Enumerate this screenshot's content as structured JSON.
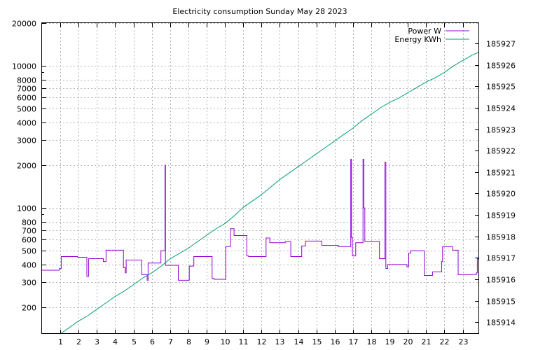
{
  "chart_data": {
    "type": "line",
    "title": "Electricity consumption Sunday May 28 2023",
    "xlabel": "",
    "ylabel": "",
    "y2label": "",
    "grid": true,
    "legend_position": "top-right",
    "x_range": [
      0,
      23.9
    ],
    "x_ticks": [
      1,
      2,
      3,
      4,
      5,
      6,
      7,
      8,
      9,
      10,
      11,
      12,
      13,
      14,
      15,
      16,
      17,
      18,
      19,
      20,
      21,
      22,
      23
    ],
    "y_scale": "log",
    "y_range": [
      130,
      20000
    ],
    "y_ticks": [
      200,
      300,
      400,
      500,
      600,
      700,
      800,
      1000,
      2000,
      3000,
      4000,
      5000,
      6000,
      7000,
      8000,
      10000,
      20000
    ],
    "y2_range": [
      185913.45,
      185927.95
    ],
    "y2_ticks": [
      185914,
      185915,
      185916,
      185917,
      185918,
      185919,
      185920,
      185921,
      185922,
      185923,
      185924,
      185925,
      185926,
      185927
    ],
    "series": [
      {
        "name": "Power W",
        "color": "#9400d3",
        "axis": "y",
        "step": true,
        "points": [
          [
            0,
            365
          ],
          [
            0.95,
            365
          ],
          [
            0.95,
            375
          ],
          [
            1.05,
            375
          ],
          [
            1.05,
            455
          ],
          [
            1.95,
            455
          ],
          [
            1.95,
            450
          ],
          [
            2.45,
            450
          ],
          [
            2.45,
            330
          ],
          [
            2.55,
            330
          ],
          [
            2.55,
            440
          ],
          [
            3.35,
            440
          ],
          [
            3.35,
            420
          ],
          [
            3.5,
            420
          ],
          [
            3.5,
            505
          ],
          [
            4.45,
            505
          ],
          [
            4.45,
            380
          ],
          [
            4.55,
            380
          ],
          [
            4.55,
            350
          ],
          [
            4.6,
            350
          ],
          [
            4.6,
            430
          ],
          [
            5.45,
            430
          ],
          [
            5.45,
            340
          ],
          [
            5.75,
            340
          ],
          [
            5.75,
            310
          ],
          [
            5.8,
            310
          ],
          [
            5.8,
            410
          ],
          [
            6.5,
            410
          ],
          [
            6.5,
            500
          ],
          [
            6.72,
            500
          ],
          [
            6.72,
            2000
          ],
          [
            6.75,
            2000
          ],
          [
            6.75,
            395
          ],
          [
            7.45,
            395
          ],
          [
            7.45,
            310
          ],
          [
            8.05,
            310
          ],
          [
            8.05,
            390
          ],
          [
            8.3,
            390
          ],
          [
            8.3,
            455
          ],
          [
            9.3,
            455
          ],
          [
            9.3,
            320
          ],
          [
            9.4,
            320
          ],
          [
            9.4,
            315
          ],
          [
            10.05,
            315
          ],
          [
            10.05,
            535
          ],
          [
            10.3,
            535
          ],
          [
            10.3,
            715
          ],
          [
            10.5,
            715
          ],
          [
            10.5,
            640
          ],
          [
            11.2,
            640
          ],
          [
            11.2,
            460
          ],
          [
            11.3,
            460
          ],
          [
            11.3,
            455
          ],
          [
            12.25,
            455
          ],
          [
            12.25,
            615
          ],
          [
            12.45,
            615
          ],
          [
            12.45,
            570
          ],
          [
            13.3,
            570
          ],
          [
            13.3,
            580
          ],
          [
            13.6,
            580
          ],
          [
            13.6,
            455
          ],
          [
            14.2,
            455
          ],
          [
            14.2,
            540
          ],
          [
            14.4,
            540
          ],
          [
            14.4,
            585
          ],
          [
            15.3,
            585
          ],
          [
            15.3,
            545
          ],
          [
            16.2,
            545
          ],
          [
            16.2,
            535
          ],
          [
            16.88,
            535
          ],
          [
            16.88,
            2200
          ],
          [
            16.92,
            2200
          ],
          [
            16.92,
            620
          ],
          [
            16.97,
            620
          ],
          [
            16.97,
            460
          ],
          [
            17.15,
            460
          ],
          [
            17.15,
            570
          ],
          [
            17.55,
            570
          ],
          [
            17.55,
            2200
          ],
          [
            17.6,
            2200
          ],
          [
            17.6,
            1000
          ],
          [
            17.65,
            1000
          ],
          [
            17.65,
            580
          ],
          [
            18.45,
            580
          ],
          [
            18.45,
            440
          ],
          [
            18.75,
            440
          ],
          [
            18.75,
            2100
          ],
          [
            18.8,
            2100
          ],
          [
            18.8,
            375
          ],
          [
            18.9,
            375
          ],
          [
            18.9,
            400
          ],
          [
            19.95,
            400
          ],
          [
            19.95,
            385
          ],
          [
            20.05,
            385
          ],
          [
            20.05,
            480
          ],
          [
            20.15,
            480
          ],
          [
            20.15,
            500
          ],
          [
            20.9,
            500
          ],
          [
            20.9,
            335
          ],
          [
            21.35,
            335
          ],
          [
            21.35,
            355
          ],
          [
            21.85,
            355
          ],
          [
            21.85,
            420
          ],
          [
            21.9,
            420
          ],
          [
            21.9,
            535
          ],
          [
            22.45,
            535
          ],
          [
            22.45,
            505
          ],
          [
            22.75,
            505
          ],
          [
            22.75,
            340
          ],
          [
            23.75,
            340
          ],
          [
            23.75,
            350
          ],
          [
            23.8,
            350
          ],
          [
            23.8,
            440
          ],
          [
            23.9,
            440
          ]
        ]
      },
      {
        "name": "Energy KWh",
        "color": "#009e73",
        "axis": "y2",
        "step": false,
        "points": [
          [
            1,
            185913.45
          ],
          [
            1.5,
            185913.75
          ],
          [
            2,
            185914.05
          ],
          [
            2.5,
            185914.3
          ],
          [
            3,
            185914.6
          ],
          [
            3.5,
            185914.9
          ],
          [
            4,
            185915.2
          ],
          [
            4.5,
            185915.45
          ],
          [
            5,
            185915.75
          ],
          [
            5.5,
            185916.05
          ],
          [
            6,
            185916.3
          ],
          [
            6.5,
            185916.6
          ],
          [
            7,
            185916.95
          ],
          [
            7.5,
            185917.2
          ],
          [
            8,
            185917.45
          ],
          [
            8.5,
            185917.75
          ],
          [
            9,
            185918.05
          ],
          [
            9.5,
            185918.35
          ],
          [
            10,
            185918.6
          ],
          [
            10.5,
            185918.95
          ],
          [
            11,
            185919.35
          ],
          [
            11.5,
            185919.65
          ],
          [
            12,
            185919.95
          ],
          [
            12.5,
            185920.3
          ],
          [
            13,
            185920.65
          ],
          [
            13.5,
            185920.95
          ],
          [
            14,
            185921.25
          ],
          [
            14.5,
            185921.55
          ],
          [
            15,
            185921.85
          ],
          [
            15.5,
            185922.15
          ],
          [
            16,
            185922.45
          ],
          [
            16.5,
            185922.75
          ],
          [
            17,
            185923.05
          ],
          [
            17.5,
            185923.4
          ],
          [
            18,
            185923.7
          ],
          [
            18.5,
            185924
          ],
          [
            19,
            185924.25
          ],
          [
            19.5,
            185924.45
          ],
          [
            20,
            185924.7
          ],
          [
            20.5,
            185924.95
          ],
          [
            21,
            185925.2
          ],
          [
            21.5,
            185925.4
          ],
          [
            22,
            185925.65
          ],
          [
            22.5,
            185925.95
          ],
          [
            23,
            185926.2
          ],
          [
            23.5,
            185926.45
          ],
          [
            23.9,
            185926.6
          ]
        ]
      }
    ]
  }
}
